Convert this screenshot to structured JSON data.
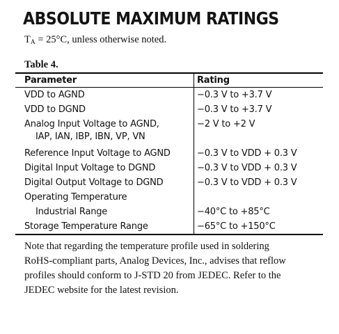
{
  "title": "ABSOLUTE MAXIMUM RATINGS",
  "conditions": {
    "prefix": "T",
    "subscript": "A",
    "text": " = 25°C, unless otherwise  noted."
  },
  "table_caption": "Table 4.",
  "table": {
    "headers": {
      "parameter": "Parameter",
      "rating": "Rating"
    },
    "rows": [
      {
        "parameter": "VDD to AGND",
        "rating": "−0.3 V to +3.7 V"
      },
      {
        "parameter": "VDD to DGND",
        "rating": "−0.3 V to +3.7 V"
      },
      {
        "parameter": "Analog Input Voltage to AGND,",
        "parameter_line2": "IAP, IAN, IBP, IBN, VP, VN",
        "rating": "−2 V to +2 V"
      },
      {
        "parameter": "Reference Input Voltage to AGND",
        "rating": "−0.3 V to VDD + 0.3 V"
      },
      {
        "parameter": "Digital Input Voltage to DGND",
        "rating": "−0.3 V to VDD + 0.3 V"
      },
      {
        "parameter": "Digital Output Voltage to DGND",
        "rating": "−0.3 V to VDD + 0.3 V"
      },
      {
        "parameter": "Operating Temperature",
        "rating": ""
      },
      {
        "parameter": "Industrial Range",
        "rating": "−40°C to +85°C"
      },
      {
        "parameter": "Storage Temperature Range",
        "rating": "−65°C to +150°C"
      }
    ]
  },
  "note": {
    "lines": [
      "Note that regarding the temperature profile used in soldering",
      "RoHS-compliant parts, Analog Devices, Inc., advises that reflow",
      "profiles should conform to J-STD 20 from JEDEC. Refer to the",
      "JEDEC website for the latest revision."
    ]
  }
}
